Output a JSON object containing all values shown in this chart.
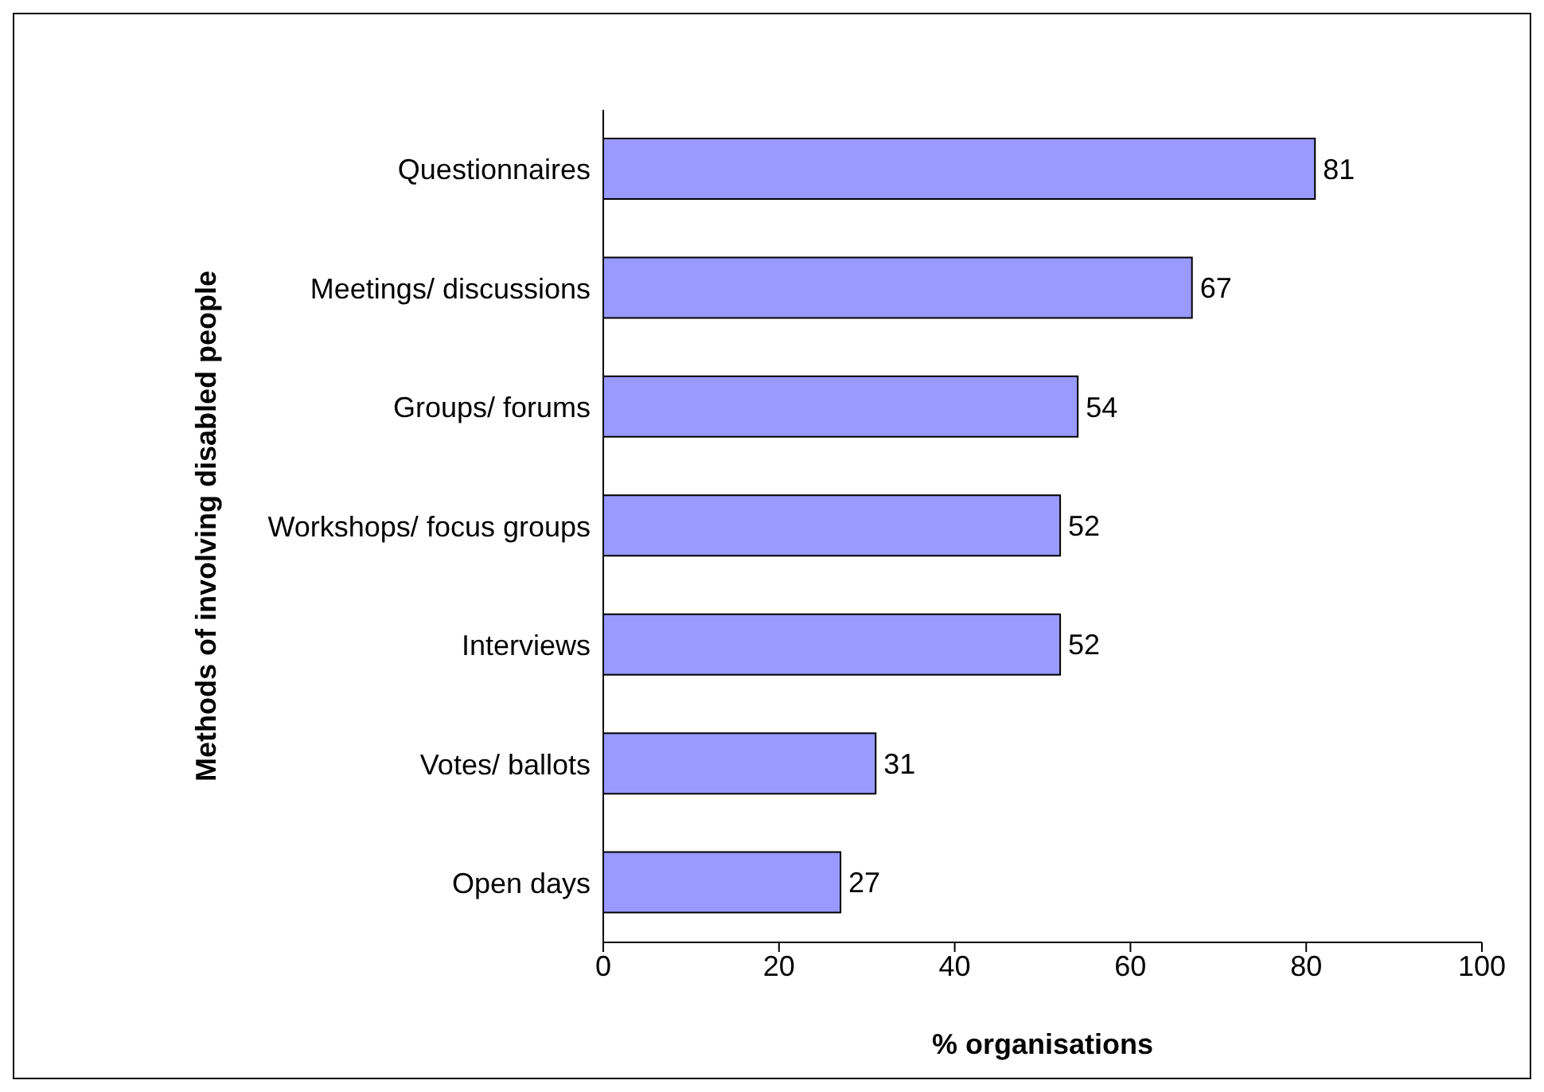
{
  "chart_data": {
    "type": "bar",
    "orientation": "horizontal",
    "xlabel": "% organisations",
    "ylabel": "Methods of involving disabled people",
    "categories": [
      "Questionnaires",
      "Meetings/ discussions",
      "Groups/ forums",
      "Workshops/ focus groups",
      "Interviews",
      "Votes/ ballots",
      "Open days"
    ],
    "values": [
      81,
      67,
      54,
      52,
      52,
      31,
      27
    ],
    "color": "#9999ff",
    "xlim": [
      0,
      100
    ],
    "xticks": [
      0,
      20,
      40,
      60,
      80,
      100
    ],
    "grid": false,
    "legend": false,
    "data_labels": true
  }
}
